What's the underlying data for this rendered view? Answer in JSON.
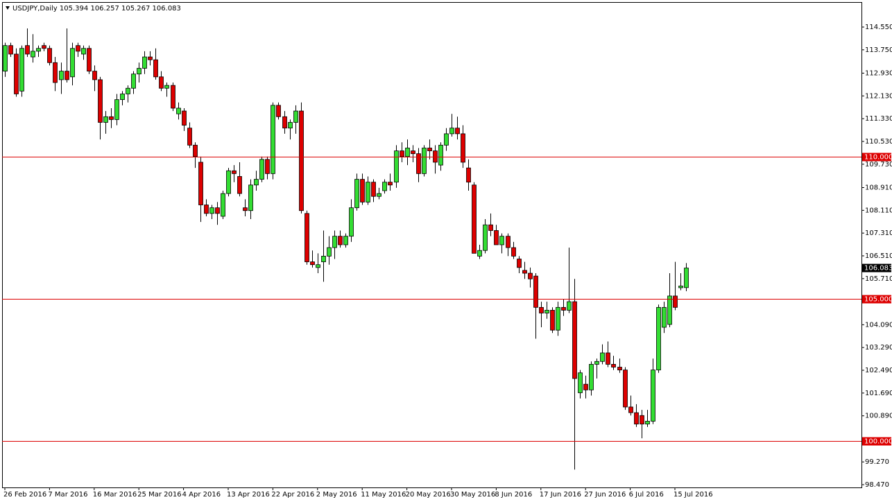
{
  "chart_data": {
    "type": "candlestick",
    "title": "USDJPY,Daily",
    "categories": [
      "26 Feb 2016",
      null,
      null,
      null,
      null,
      null,
      null,
      null,
      "7 Mar 2016",
      null,
      null,
      null,
      null,
      null,
      null,
      null,
      "16 Mar 2016",
      null,
      null,
      null,
      null,
      null,
      null,
      null,
      "25 Mar 2016",
      null,
      null,
      null,
      null,
      null,
      null,
      null,
      "4 Apr 2016",
      null,
      null,
      null,
      null,
      null,
      null,
      null,
      "13 Apr 2016",
      null,
      null,
      null,
      null,
      null,
      null,
      null,
      "22 Apr 2016",
      null,
      null,
      null,
      null,
      null,
      null,
      null,
      "2 May 2016",
      null,
      null,
      null,
      null,
      null,
      null,
      null,
      "11 May 2016",
      null,
      null,
      null,
      null,
      null,
      null,
      null,
      "20 May 2016",
      null,
      null,
      null,
      null,
      null,
      null,
      null,
      "30 May 2016",
      null,
      null,
      null,
      null,
      null,
      null,
      null,
      "8 Jun 2016",
      null,
      null,
      null,
      null,
      null,
      null,
      null,
      "17 Jun 2016",
      null,
      null,
      null,
      null,
      null,
      null,
      null,
      "27 Jun 2016",
      null,
      null,
      null,
      null,
      null,
      null,
      null,
      "6 Jul 2016",
      null,
      null,
      null,
      null,
      null,
      null,
      null,
      "15 Jul 2016",
      null,
      null
    ],
    "open": [
      113.0,
      113.9,
      113.6,
      112.3,
      113.9,
      113.5,
      113.7,
      113.9,
      113.8,
      113.3,
      112.7,
      113.0,
      112.8,
      113.9,
      113.6,
      113.8,
      113.0,
      112.7,
      111.2,
      111.4,
      111.3,
      112.0,
      112.2,
      112.4,
      112.9,
      113.1,
      113.5,
      113.4,
      112.8,
      112.4,
      112.5,
      111.5,
      111.6,
      111.0,
      110.4,
      109.8,
      108.3,
      108.0,
      108.2,
      107.9,
      108.7,
      109.5,
      109.3,
      108.2,
      108.1,
      109.0,
      109.2,
      109.9,
      109.4,
      111.8,
      111.4,
      111.0,
      111.2,
      111.6,
      108.0,
      106.3,
      106.1,
      106.3,
      106.5,
      106.8,
      107.2,
      106.9,
      107.2,
      108.2,
      109.2,
      108.4,
      109.1,
      108.6,
      108.8,
      109.1,
      109.1,
      110.2,
      110.0,
      110.2,
      110.1,
      109.4,
      110.3,
      110.2,
      109.7,
      110.4,
      110.8,
      111.0,
      110.8,
      109.6,
      109.0,
      106.5,
      106.7,
      107.6,
      107.4,
      106.9,
      107.2,
      106.8,
      106.4,
      106.0,
      105.9,
      105.8,
      104.7,
      104.5,
      104.6,
      103.9,
      104.7,
      104.6,
      104.9,
      101.7,
      102.0,
      101.8,
      102.7,
      102.8,
      103.1,
      102.7,
      102.6,
      102.5,
      101.2,
      101.0,
      100.9,
      100.6,
      100.7,
      102.5,
      104.0,
      104.1,
      105.1,
      105.39,
      105.394
    ],
    "high": [
      114.0,
      114.0,
      113.8,
      113.9,
      114.5,
      114.3,
      113.9,
      114.0,
      113.9,
      113.5,
      113.3,
      114.5,
      114.0,
      114.0,
      113.9,
      113.9,
      113.2,
      112.8,
      111.6,
      111.7,
      112.2,
      112.3,
      112.5,
      113.0,
      113.3,
      113.7,
      113.7,
      113.8,
      113.0,
      112.6,
      112.6,
      111.9,
      111.7,
      111.2,
      110.5,
      110.0,
      108.5,
      108.3,
      108.4,
      108.8,
      109.6,
      109.7,
      109.8,
      108.5,
      109.2,
      109.5,
      110.0,
      110.0,
      111.9,
      111.9,
      111.6,
      111.3,
      111.8,
      111.9,
      108.1,
      106.7,
      106.6,
      107.4,
      107.2,
      107.4,
      107.4,
      107.3,
      108.5,
      109.4,
      109.4,
      109.3,
      109.2,
      108.9,
      109.2,
      109.4,
      110.4,
      110.5,
      110.6,
      110.4,
      110.3,
      110.4,
      110.6,
      110.4,
      110.5,
      111.0,
      111.5,
      111.4,
      111.1,
      109.9,
      109.1,
      106.9,
      107.8,
      108.0,
      107.6,
      107.3,
      107.3,
      107.0,
      106.5,
      106.3,
      106.1,
      105.9,
      104.9,
      104.9,
      104.7,
      104.9,
      105.0,
      106.8,
      105.7,
      102.5,
      102.3,
      102.8,
      102.9,
      103.4,
      103.5,
      103.0,
      102.9,
      102.6,
      101.6,
      101.3,
      101.1,
      101.1,
      102.9,
      104.8,
      104.9,
      105.9,
      106.3,
      105.9,
      106.257
    ],
    "low": [
      112.8,
      113.5,
      112.1,
      112.1,
      113.5,
      113.3,
      113.5,
      113.7,
      113.2,
      112.3,
      112.2,
      112.6,
      112.5,
      113.5,
      113.4,
      112.9,
      112.3,
      110.6,
      110.8,
      111.0,
      111.1,
      111.8,
      111.9,
      112.2,
      112.6,
      112.9,
      113.2,
      112.7,
      112.3,
      112.1,
      111.6,
      111.3,
      110.9,
      110.3,
      109.6,
      107.7,
      107.9,
      107.8,
      107.6,
      107.8,
      108.6,
      109.1,
      108.6,
      107.9,
      107.8,
      108.8,
      109.1,
      109.2,
      109.2,
      111.3,
      110.8,
      110.6,
      110.8,
      108.0,
      106.2,
      106.1,
      105.9,
      105.6,
      106.2,
      106.4,
      106.8,
      106.8,
      107.0,
      108.1,
      108.3,
      108.3,
      108.4,
      108.5,
      108.7,
      108.8,
      108.9,
      109.8,
      109.7,
      109.8,
      109.1,
      109.3,
      109.9,
      109.4,
      109.5,
      110.2,
      110.7,
      110.6,
      109.6,
      108.8,
      106.6,
      106.4,
      106.6,
      107.2,
      106.9,
      106.6,
      106.5,
      106.4,
      105.9,
      105.7,
      105.4,
      103.6,
      104.0,
      104.3,
      103.8,
      103.7,
      104.4,
      104.5,
      99.0,
      101.5,
      101.5,
      101.6,
      102.2,
      102.7,
      102.6,
      102.5,
      102.4,
      101.1,
      100.9,
      100.5,
      100.1,
      100.5,
      100.6,
      102.4,
      103.8,
      104.0,
      104.6,
      105.3,
      105.267
    ],
    "close": [
      113.9,
      113.6,
      112.2,
      113.8,
      113.6,
      113.7,
      113.8,
      113.8,
      113.3,
      112.6,
      113.0,
      112.7,
      113.8,
      113.7,
      113.8,
      113.0,
      112.7,
      111.2,
      111.4,
      111.3,
      112.0,
      112.2,
      112.4,
      112.9,
      113.1,
      113.5,
      113.4,
      112.8,
      112.4,
      112.5,
      111.7,
      111.7,
      111.1,
      110.4,
      110.0,
      108.3,
      108.0,
      108.2,
      108.0,
      108.7,
      109.5,
      109.4,
      108.7,
      108.1,
      109.0,
      109.2,
      109.9,
      109.4,
      111.8,
      111.4,
      111.0,
      111.2,
      111.6,
      108.1,
      106.3,
      106.2,
      106.2,
      106.5,
      106.8,
      107.2,
      106.9,
      107.2,
      108.2,
      109.2,
      108.4,
      109.1,
      108.6,
      108.7,
      109.1,
      109.0,
      110.2,
      110.0,
      110.3,
      110.1,
      109.4,
      110.3,
      110.2,
      109.8,
      110.4,
      110.8,
      111.0,
      110.8,
      109.8,
      109.1,
      106.6,
      106.7,
      107.6,
      107.4,
      106.9,
      107.2,
      106.8,
      106.5,
      106.1,
      105.9,
      105.7,
      104.7,
      104.5,
      104.6,
      103.9,
      104.7,
      104.6,
      104.9,
      102.2,
      102.4,
      101.8,
      102.7,
      102.8,
      103.1,
      102.7,
      102.6,
      102.5,
      101.2,
      101.0,
      100.6,
      100.6,
      100.7,
      102.5,
      104.7,
      104.7,
      105.1,
      104.7,
      105.45,
      106.083
    ],
    "up_color": "#33dd33",
    "down_color": "#dd0000",
    "ylim": [
      98.373,
      115.427
    ],
    "yticks": [
      {
        "value": 114.55,
        "label": "114.550"
      },
      {
        "value": 113.75,
        "label": "113.750"
      },
      {
        "value": 112.93,
        "label": "112.930"
      },
      {
        "value": 112.13,
        "label": "112.130"
      },
      {
        "value": 111.33,
        "label": "111.330"
      },
      {
        "value": 110.53,
        "label": "110.530"
      },
      {
        "value": 109.73,
        "label": "109.730"
      },
      {
        "value": 108.91,
        "label": "108.910"
      },
      {
        "value": 108.11,
        "label": "108.110"
      },
      {
        "value": 107.31,
        "label": "107.310"
      },
      {
        "value": 106.51,
        "label": "106.510"
      },
      {
        "value": 105.71,
        "label": "105.710"
      },
      {
        "value": 104.09,
        "label": "104.090"
      },
      {
        "value": 103.29,
        "label": "103.290"
      },
      {
        "value": 102.49,
        "label": "102.490"
      },
      {
        "value": 101.69,
        "label": "101.690"
      },
      {
        "value": 100.89,
        "label": "100.890"
      },
      {
        "value": 99.27,
        "label": "99.270"
      },
      {
        "value": 98.47,
        "label": "98.470"
      }
    ],
    "hlines": [
      {
        "value": 110,
        "label": "110.000"
      },
      {
        "value": 105,
        "label": "105.000"
      },
      {
        "value": 100,
        "label": "100.000"
      }
    ],
    "hline_color": "#dd0000"
  }
}
